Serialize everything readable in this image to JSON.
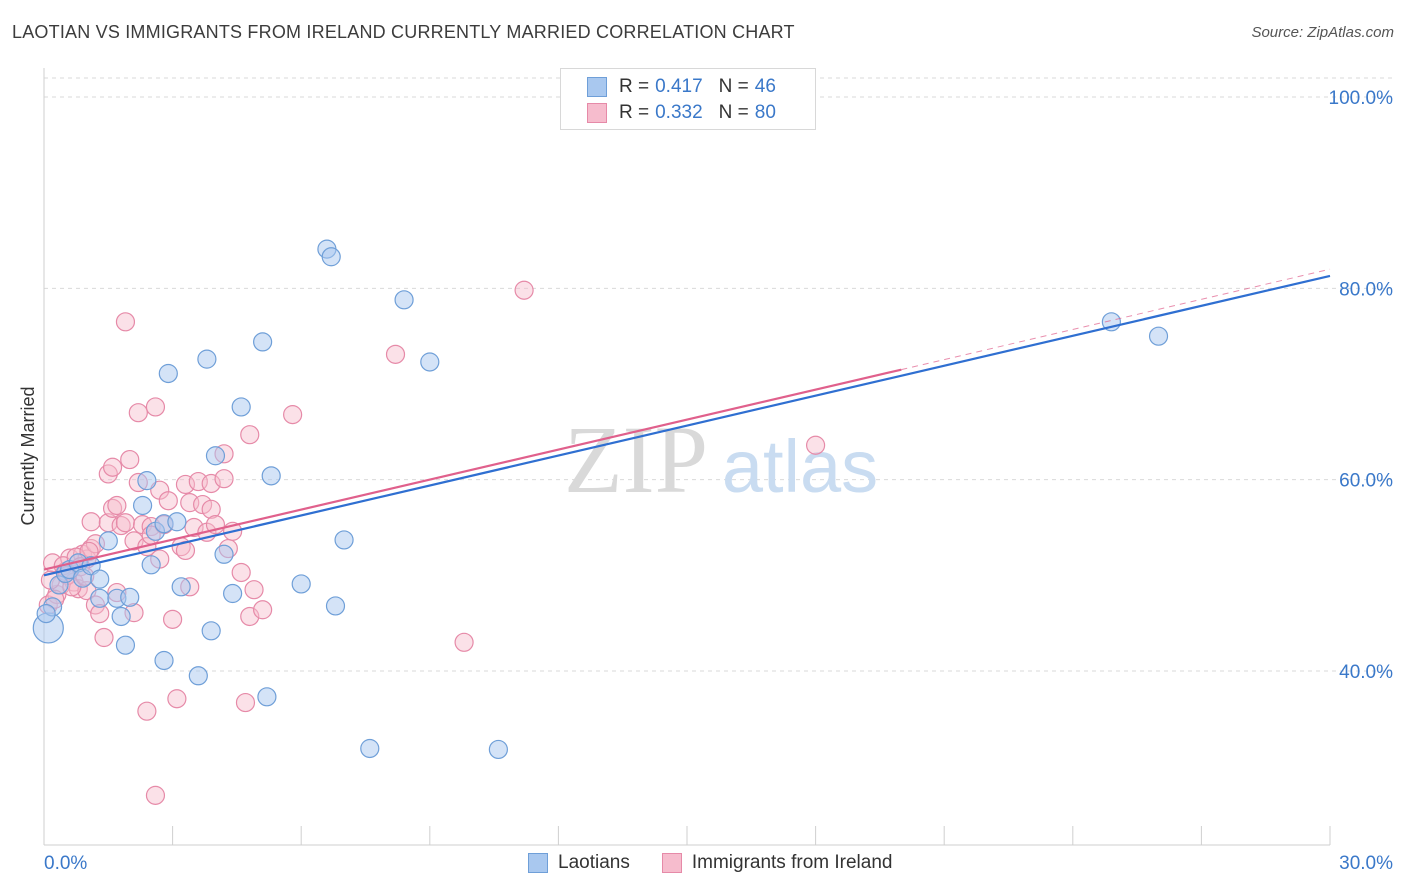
{
  "header": {
    "title": "LAOTIAN VS IMMIGRANTS FROM IRELAND CURRENTLY MARRIED CORRELATION CHART",
    "source": "Source: ZipAtlas.com"
  },
  "legend_top": {
    "rows": [
      {
        "r_label": "R =",
        "r_value": "0.417",
        "n_label": "N =",
        "n_value": "46"
      },
      {
        "r_label": "R =",
        "r_value": "0.332",
        "n_label": "N =",
        "n_value": "80"
      }
    ]
  },
  "legend_bottom": {
    "items": [
      "Laotians",
      "Immigrants from Ireland"
    ]
  },
  "watermark": {
    "zip": "ZIP",
    "atlas": "atlas"
  },
  "colors": {
    "blue_fill": "#a9c8ef",
    "blue_stroke": "#6f9fd8",
    "blue_line": "#2f6fd1",
    "pink_fill": "#f6bccd",
    "pink_stroke": "#e68aa8",
    "pink_line": "#e0608c",
    "axis_label": "#3a78c9"
  },
  "chart_data": {
    "type": "scatter",
    "title": "LAOTIAN VS IMMIGRANTS FROM IRELAND CURRENTLY MARRIED CORRELATION CHART",
    "xlabel": "",
    "ylabel": "Currently Married",
    "xlim": [
      0,
      30
    ],
    "ylim": [
      20,
      102
    ],
    "x_tick_labels": [
      {
        "value": 0,
        "label": "0.0%"
      },
      {
        "value": 30,
        "label": "30.0%"
      }
    ],
    "y_tick_labels": [
      {
        "value": 100,
        "label": "100.0%"
      },
      {
        "value": 80,
        "label": "80.0%"
      },
      {
        "value": 60,
        "label": "60.0%"
      },
      {
        "value": 40,
        "label": "40.0%"
      }
    ],
    "grid": "horizontal dashed",
    "series": [
      {
        "name": "Laotians",
        "R": 0.417,
        "N": 46,
        "trend": {
          "x0": 0,
          "y0": 50.0,
          "x1": 30,
          "y1": 81.3
        },
        "points": [
          [
            0.1,
            44.5
          ],
          [
            0.2,
            46.7
          ],
          [
            0.35,
            49.0
          ],
          [
            0.5,
            50.2
          ],
          [
            0.6,
            50.6
          ],
          [
            0.8,
            51.3
          ],
          [
            0.9,
            49.7
          ],
          [
            1.1,
            51.0
          ],
          [
            1.3,
            49.6
          ],
          [
            1.3,
            47.6
          ],
          [
            1.5,
            53.6
          ],
          [
            1.7,
            47.6
          ],
          [
            1.8,
            45.7
          ],
          [
            1.9,
            42.7
          ],
          [
            2.0,
            47.7
          ],
          [
            2.3,
            57.3
          ],
          [
            2.4,
            59.9
          ],
          [
            2.5,
            51.1
          ],
          [
            2.6,
            54.6
          ],
          [
            2.8,
            55.4
          ],
          [
            2.8,
            41.1
          ],
          [
            2.9,
            71.1
          ],
          [
            3.1,
            55.6
          ],
          [
            3.2,
            48.8
          ],
          [
            3.6,
            39.5
          ],
          [
            3.8,
            72.6
          ],
          [
            3.9,
            44.2
          ],
          [
            4.0,
            62.5
          ],
          [
            4.2,
            52.2
          ],
          [
            4.4,
            48.1
          ],
          [
            4.6,
            67.6
          ],
          [
            5.1,
            74.4
          ],
          [
            5.2,
            37.3
          ],
          [
            5.3,
            60.4
          ],
          [
            6.0,
            49.1
          ],
          [
            6.6,
            84.1
          ],
          [
            6.7,
            83.3
          ],
          [
            6.8,
            46.8
          ],
          [
            7.0,
            53.7
          ],
          [
            7.6,
            31.9
          ],
          [
            8.4,
            78.8
          ],
          [
            9.0,
            72.3
          ],
          [
            10.6,
            31.8
          ],
          [
            24.9,
            76.5
          ],
          [
            26.0,
            75.0
          ],
          [
            0.05,
            46.0
          ]
        ]
      },
      {
        "name": "Immigrants from Ireland",
        "R": 0.332,
        "N": 80,
        "trend": {
          "x0": 0,
          "y0": 50.6,
          "x1": 20.0,
          "y1": 71.5,
          "dash_to_x": 30,
          "dash_to_y": 82.0
        },
        "points": [
          [
            0.1,
            46.9
          ],
          [
            0.2,
            51.3
          ],
          [
            0.3,
            48.0
          ],
          [
            0.4,
            49.0
          ],
          [
            0.5,
            50.4
          ],
          [
            0.6,
            51.8
          ],
          [
            0.7,
            49.3
          ],
          [
            0.8,
            48.6
          ],
          [
            0.9,
            52.2
          ],
          [
            1.0,
            51.7
          ],
          [
            1.0,
            48.4
          ],
          [
            1.1,
            52.8
          ],
          [
            1.1,
            55.6
          ],
          [
            1.2,
            53.3
          ],
          [
            1.2,
            46.9
          ],
          [
            1.3,
            46.0
          ],
          [
            1.4,
            43.5
          ],
          [
            1.5,
            60.6
          ],
          [
            1.5,
            55.5
          ],
          [
            1.6,
            57.0
          ],
          [
            1.6,
            61.3
          ],
          [
            1.7,
            57.3
          ],
          [
            1.7,
            48.2
          ],
          [
            1.8,
            55.2
          ],
          [
            1.9,
            76.5
          ],
          [
            1.9,
            55.5
          ],
          [
            2.0,
            62.1
          ],
          [
            2.1,
            53.6
          ],
          [
            2.1,
            46.1
          ],
          [
            2.2,
            59.7
          ],
          [
            2.2,
            67.0
          ],
          [
            2.3,
            55.3
          ],
          [
            2.4,
            53.0
          ],
          [
            2.4,
            35.8
          ],
          [
            2.5,
            55.1
          ],
          [
            2.5,
            54.2
          ],
          [
            2.6,
            27.0
          ],
          [
            2.6,
            67.6
          ],
          [
            2.7,
            58.9
          ],
          [
            2.7,
            51.7
          ],
          [
            2.8,
            55.3
          ],
          [
            2.9,
            57.8
          ],
          [
            3.0,
            45.4
          ],
          [
            3.1,
            37.1
          ],
          [
            3.2,
            53.0
          ],
          [
            3.3,
            52.6
          ],
          [
            3.3,
            59.5
          ],
          [
            3.4,
            57.6
          ],
          [
            3.4,
            48.8
          ],
          [
            3.5,
            55.0
          ],
          [
            3.6,
            59.8
          ],
          [
            3.7,
            57.4
          ],
          [
            3.8,
            54.5
          ],
          [
            3.9,
            59.6
          ],
          [
            3.9,
            56.9
          ],
          [
            4.0,
            55.3
          ],
          [
            4.2,
            62.7
          ],
          [
            4.2,
            60.1
          ],
          [
            4.3,
            52.8
          ],
          [
            4.4,
            54.6
          ],
          [
            4.6,
            50.3
          ],
          [
            4.7,
            36.7
          ],
          [
            4.8,
            45.7
          ],
          [
            4.8,
            64.7
          ],
          [
            4.9,
            48.5
          ],
          [
            5.1,
            46.4
          ],
          [
            5.8,
            66.8
          ],
          [
            8.2,
            73.1
          ],
          [
            9.8,
            43.0
          ],
          [
            11.2,
            79.8
          ],
          [
            18.0,
            63.6
          ],
          [
            0.15,
            49.5
          ],
          [
            0.25,
            47.5
          ],
          [
            0.45,
            51.0
          ],
          [
            0.55,
            50.0
          ],
          [
            0.65,
            48.8
          ],
          [
            0.75,
            51.9
          ],
          [
            0.85,
            50.9
          ],
          [
            0.95,
            49.9
          ],
          [
            1.05,
            52.5
          ]
        ]
      }
    ]
  }
}
